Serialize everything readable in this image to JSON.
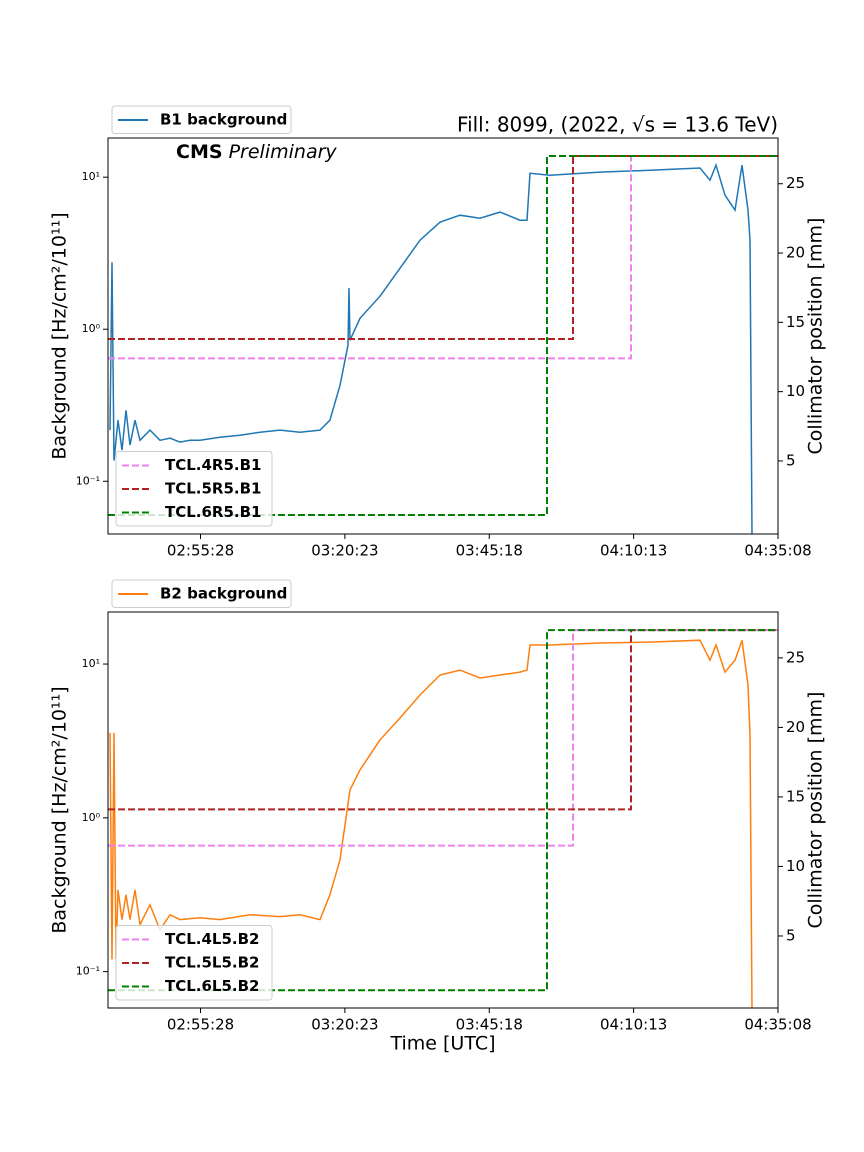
{
  "chart_data": [
    {
      "type": "line",
      "title": "Fill: 8099, (2022, √s = 13.6 TeV)",
      "annotations": [
        "CMS",
        "Preliminary"
      ],
      "y_label": "Background [Hz/cm²/10¹¹]",
      "y2_label": "Collimator position [mm]",
      "xlim": [
        9570,
        16508
      ],
      "xticks": [
        {
          "value": 10528,
          "label": "02:55:28"
        },
        {
          "value": 12023,
          "label": "03:20:23"
        },
        {
          "value": 13518,
          "label": "03:45:18"
        },
        {
          "value": 15013,
          "label": "04:10:13"
        },
        {
          "value": 16508,
          "label": "04:35:08"
        }
      ],
      "y_scale": "log",
      "ylim": [
        0.045,
        18.1
      ],
      "yticks": [
        {
          "value": 0.1,
          "label": "10⁻¹"
        },
        {
          "value": 1,
          "label": "10⁰"
        },
        {
          "value": 10,
          "label": "10¹"
        }
      ],
      "y2lim": [
        -0.27,
        28.3
      ],
      "y2ticks": [
        5,
        10,
        15,
        20,
        25
      ],
      "legend": "upper left outside",
      "y2_legend": "lower left",
      "series": [
        {
          "name": "B1 background",
          "color": "#1f77b4",
          "x": [
            9591,
            9611,
            9632,
            9674,
            9715,
            9756,
            9798,
            9850,
            9901,
            10005,
            10108,
            10212,
            10316,
            10419,
            10523,
            10728,
            10937,
            11144,
            11351,
            11558,
            11765,
            11868,
            11972,
            12055,
            12066,
            12076,
            12179,
            12387,
            12594,
            12801,
            13008,
            13215,
            13422,
            13629,
            13836,
            13909,
            13940,
            14147,
            14665,
            15182,
            15700,
            15804,
            15866,
            15959,
            16063,
            16135,
            16197,
            16218,
            16239
          ],
          "values": [
            0.217,
            2.76,
            0.137,
            0.252,
            0.16,
            0.293,
            0.173,
            0.252,
            0.186,
            0.217,
            0.186,
            0.192,
            0.181,
            0.186,
            0.186,
            0.195,
            0.201,
            0.21,
            0.217,
            0.21,
            0.217,
            0.252,
            0.428,
            0.785,
            1.86,
            0.847,
            1.18,
            1.65,
            2.52,
            3.85,
            5.06,
            5.62,
            5.37,
            5.89,
            5.21,
            5.21,
            10.6,
            10.3,
            10.8,
            11.1,
            11.5,
            9.55,
            12.0,
            7.61,
            6.07,
            12.0,
            6.07,
            3.85,
            0.045
          ]
        },
        {
          "name": "TCL.4R5.B1",
          "color": "#ee82ee",
          "axis": "y2",
          "dash": "dashed",
          "x": [
            9570,
            14986,
            14986,
            16508
          ],
          "values": [
            12.4,
            12.4,
            27,
            27
          ]
        },
        {
          "name": "TCL.5R5.B1",
          "color": "#b22222",
          "axis": "y2",
          "dash": "dashed",
          "x": [
            9570,
            14385,
            14385,
            16508
          ],
          "values": [
            13.8,
            13.8,
            27,
            27
          ]
        },
        {
          "name": "TCL.6R5.B1",
          "color": "#008000",
          "axis": "y2",
          "dash": "dashed",
          "x": [
            9570,
            14116,
            14116,
            16508
          ],
          "values": [
            1.1,
            1.1,
            27,
            27
          ]
        }
      ]
    },
    {
      "type": "line",
      "x_label": "Time [UTC]",
      "y_label": "Background [Hz/cm²/10¹¹]",
      "y2_label": "Collimator position [mm]",
      "xlim": [
        9570,
        16508
      ],
      "xticks": [
        {
          "value": 10528,
          "label": "02:55:28"
        },
        {
          "value": 12023,
          "label": "03:20:23"
        },
        {
          "value": 13518,
          "label": "03:45:18"
        },
        {
          "value": 15013,
          "label": "04:10:13"
        },
        {
          "value": 16508,
          "label": "04:35:08"
        }
      ],
      "y_scale": "log",
      "ylim": [
        0.058,
        21.8
      ],
      "yticks": [
        {
          "value": 0.1,
          "label": "10⁻¹"
        },
        {
          "value": 1,
          "label": "10⁰"
        },
        {
          "value": 10,
          "label": "10¹"
        }
      ],
      "y2lim": [
        -0.18,
        28.3
      ],
      "y2ticks": [
        5,
        10,
        15,
        20,
        25
      ],
      "legend": "upper left outside",
      "y2_legend": "lower left",
      "series": [
        {
          "name": "B2 background",
          "color": "#ff7f0e",
          "x": [
            9591,
            9611,
            9632,
            9653,
            9674,
            9715,
            9756,
            9798,
            9850,
            9901,
            10005,
            10108,
            10212,
            10316,
            10523,
            10728,
            11040,
            11351,
            11558,
            11765,
            11868,
            11972,
            12076,
            12179,
            12387,
            12594,
            12801,
            13008,
            13215,
            13422,
            13629,
            13836,
            13909,
            13940,
            14147,
            14665,
            15182,
            15700,
            15804,
            15866,
            15959,
            16063,
            16135,
            16197,
            16218,
            16239
          ],
          "values": [
            3.57,
            0.12,
            3.57,
            0.12,
            0.34,
            0.218,
            0.316,
            0.218,
            0.34,
            0.202,
            0.272,
            0.187,
            0.234,
            0.218,
            0.224,
            0.218,
            0.234,
            0.228,
            0.234,
            0.218,
            0.316,
            0.533,
            1.52,
            2.05,
            3.21,
            4.46,
            6.29,
            8.49,
            9.14,
            8.11,
            8.49,
            8.87,
            9.14,
            13.3,
            13.3,
            13.7,
            13.9,
            14.3,
            10.6,
            13.3,
            8.87,
            10.6,
            14.3,
            7.31,
            3.46,
            0.058
          ]
        },
        {
          "name": "TCL.4L5.B2",
          "color": "#ee82ee",
          "axis": "y2",
          "dash": "dashed",
          "x": [
            9570,
            14385,
            14385,
            16508
          ],
          "values": [
            11.5,
            11.5,
            27,
            27
          ]
        },
        {
          "name": "TCL.5L5.B2",
          "color": "#b22222",
          "axis": "y2",
          "dash": "dashed",
          "x": [
            9570,
            14986,
            14986,
            16508
          ],
          "values": [
            14.1,
            14.1,
            27,
            27
          ]
        },
        {
          "name": "TCL.6L5.B2",
          "color": "#008000",
          "axis": "y2",
          "dash": "dashed",
          "x": [
            9570,
            14116,
            14116,
            16508
          ],
          "values": [
            1.1,
            1.1,
            27,
            27
          ]
        }
      ]
    }
  ]
}
